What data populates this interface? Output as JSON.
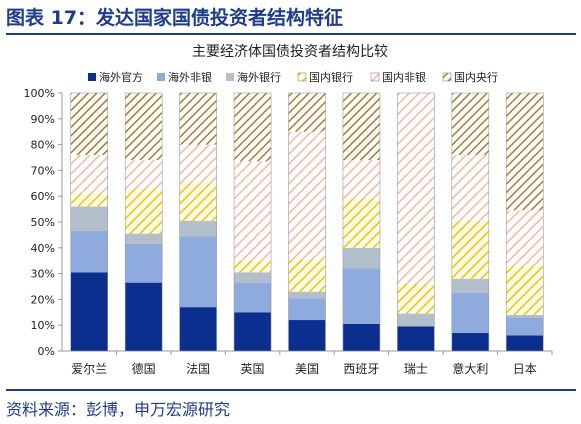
{
  "figure_title": "图表 17：发达国家国债投资者结构特征",
  "source": "资料来源：彭博，申万宏源研究",
  "chart_data": {
    "type": "bar",
    "stacked": true,
    "title": "主要经济体国债投资者结构比较",
    "categories": [
      "爱尔兰",
      "德国",
      "法国",
      "英国",
      "美国",
      "西班牙",
      "瑞士",
      "意大利",
      "日本"
    ],
    "ylim": [
      0,
      100
    ],
    "yticks": [
      "0%",
      "10%",
      "20%",
      "30%",
      "40%",
      "50%",
      "60%",
      "70%",
      "80%",
      "90%",
      "100%"
    ],
    "grid": false,
    "legend_position": "top",
    "series": [
      {
        "name": "海外官方",
        "color": "#0b2f8f",
        "pattern": "solid",
        "values": [
          30.5,
          26.5,
          17,
          15,
          12,
          10.5,
          9.5,
          7,
          6
        ]
      },
      {
        "name": "海外非银",
        "color": "#8faadc",
        "pattern": "solid",
        "values": [
          16,
          15,
          27.5,
          11.5,
          8.5,
          21.5,
          0,
          15.5,
          7
        ]
      },
      {
        "name": "海外银行",
        "color": "#b4bfcc",
        "pattern": "solid",
        "values": [
          9.5,
          4,
          6,
          4,
          2.5,
          8,
          5,
          5.5,
          1
        ]
      },
      {
        "name": "国内银行",
        "color": "#ffffff",
        "pattern": "hatch",
        "stroke": "#c8a24a",
        "values": [
          5,
          17.5,
          14.5,
          4.5,
          12.5,
          19,
          11.5,
          22.5,
          19
        ]
      },
      {
        "name": "国内非银",
        "color": "#f2c9b8",
        "pattern": "hatch",
        "stroke": "#e8b09a",
        "values": [
          15,
          11,
          15,
          38.5,
          49.5,
          15,
          74,
          25.5,
          21.5
        ]
      },
      {
        "name": "国内央行",
        "color": "#fbe9a8",
        "pattern": "hatch",
        "stroke": "#b8923e",
        "values": [
          24,
          26,
          20,
          26.5,
          15,
          26,
          0,
          24,
          45.5
        ]
      }
    ],
    "series_hatch_colors": [
      "#f0c400",
      "#f0b89c",
      "#a67c2e"
    ]
  }
}
